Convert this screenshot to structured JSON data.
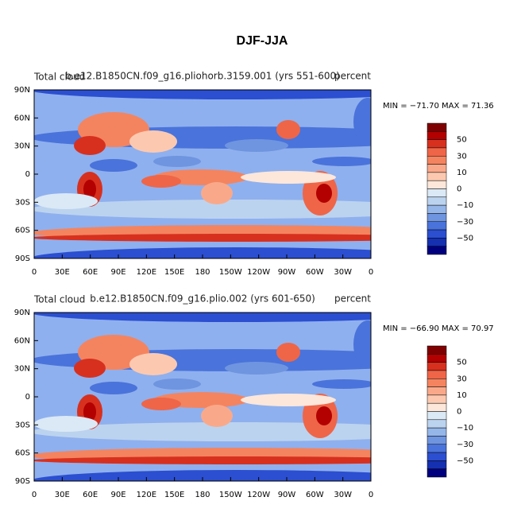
{
  "title": "DJF-JJA",
  "panels": [
    {
      "left_label": "Total cloud",
      "center_label": "b.e12.B1850CN.f09_g16.pliohorb.3159.001 (yrs 551-600)",
      "right_label": "percent",
      "stats": "MIN = −71.70 MAX =  71.36",
      "x_labels": [
        "0",
        "30E",
        "60E",
        "90E",
        "120E",
        "150E",
        "180",
        "150W",
        "120W",
        "90W",
        "60W",
        "30W",
        "0"
      ],
      "y_labels": [
        "90N",
        "60N",
        "30N",
        "0",
        "30S",
        "60S",
        "90S"
      ],
      "colorbar_labels": [
        "50",
        "30",
        "10",
        "0",
        "−10",
        "−30",
        "−50"
      ]
    },
    {
      "left_label": "Total cloud",
      "center_label": "b.e12.B1850CN.f09_g16.plio.002 (yrs 601-650)",
      "right_label": "percent",
      "stats": "MIN = −66.90 MAX =  70.97",
      "x_labels": [
        "0",
        "30E",
        "60E",
        "90E",
        "120E",
        "150E",
        "180",
        "150W",
        "120W",
        "90W",
        "60W",
        "30W",
        "0"
      ],
      "y_labels": [
        "90N",
        "60N",
        "30N",
        "0",
        "30S",
        "60S",
        "90S"
      ],
      "colorbar_labels": [
        "50",
        "30",
        "10",
        "0",
        "−10",
        "−30",
        "−50"
      ]
    }
  ]
}
